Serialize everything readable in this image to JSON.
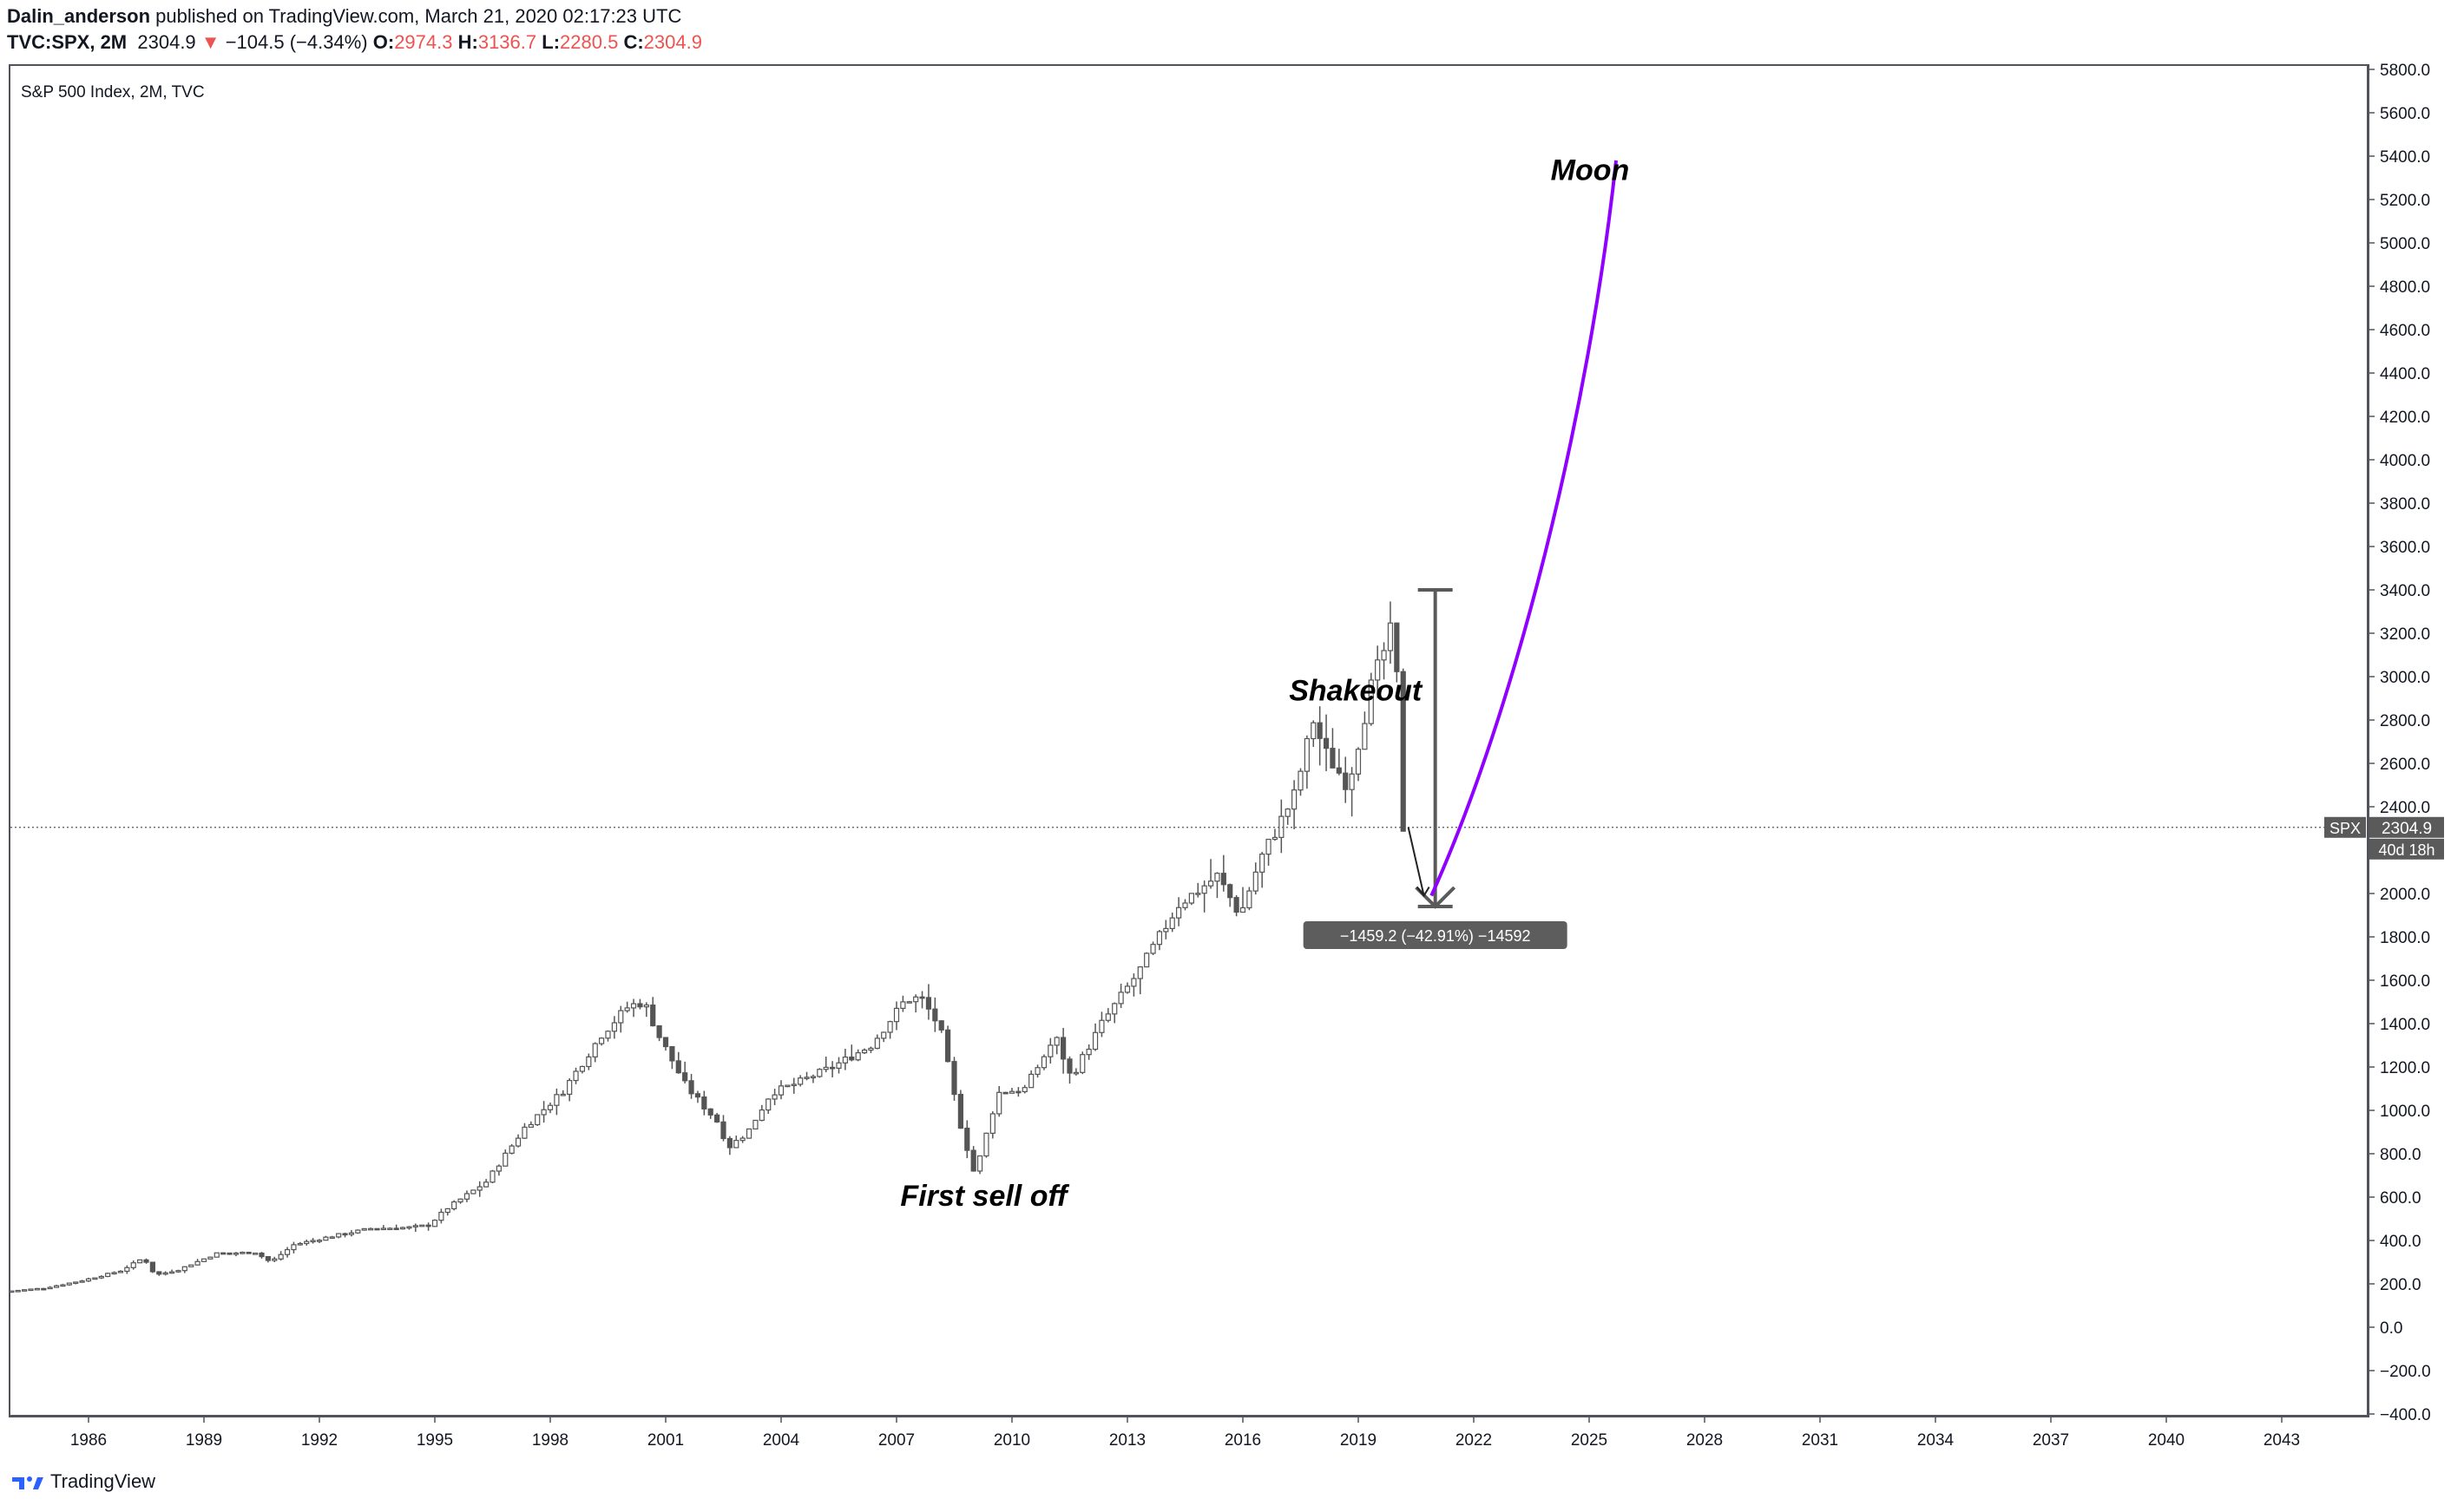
{
  "header": {
    "author": "Dalin_anderson",
    "published_text": "published on TradingView.com, March 21, 2020 02:17:23 UTC",
    "symbol": "TVC:SPX, 2M",
    "last": "2304.9",
    "change": "−104.5 (−4.34%)",
    "open_label": "O:",
    "open": "2974.3",
    "high_label": "H:",
    "high": "3136.7",
    "low_label": "L:",
    "low": "2280.5",
    "close_label": "C:",
    "close": "2304.9"
  },
  "footer": {
    "brand": "TradingView"
  },
  "colors": {
    "accent_purple": "#8f00ff",
    "measure": "#5a5a5a",
    "down": "#ef5350",
    "axis": "#50535e"
  },
  "chart_data": {
    "type": "candlestick",
    "title": "S&P 500 Index, 2M, TVC",
    "price_axis": {
      "ylim": [
        -400,
        5800
      ],
      "ticks": [
        5800,
        5600,
        5400,
        5200,
        5000,
        4800,
        4600,
        4400,
        4200,
        4000,
        3800,
        3600,
        3400,
        3200,
        3000,
        2800,
        2600,
        2400,
        2000,
        1800,
        1600,
        1400,
        1200,
        1000,
        800,
        600,
        400,
        200,
        0,
        -200,
        -400
      ],
      "tick_labels": [
        "5800.0",
        "5600.0",
        "5400.0",
        "5200.0",
        "5000.0",
        "4800.0",
        "4600.0",
        "4400.0",
        "4200.0",
        "4000.0",
        "3800.0",
        "3600.0",
        "3400.0",
        "3200.0",
        "3000.0",
        "2800.0",
        "2600.0",
        "2400.0",
        "2000.0",
        "1800.0",
        "1600.0",
        "1400.0",
        "1200.0",
        "1000.0",
        "800.0",
        "600.0",
        "400.0",
        "200.0",
        "0.0",
        "−200.0",
        "−400.0"
      ]
    },
    "time_axis": {
      "xlim": [
        1984,
        2045.2
      ],
      "ticks": [
        1986,
        1989,
        1992,
        1995,
        1998,
        2001,
        2004,
        2007,
        2010,
        2013,
        2016,
        2019,
        2022,
        2025,
        2028,
        2031,
        2034,
        2037,
        2040,
        2043
      ],
      "tick_labels": [
        "1986",
        "1989",
        "1992",
        "1995",
        "1998",
        "2001",
        "2004",
        "2007",
        "2010",
        "2013",
        "2016",
        "2019",
        "2022",
        "2025",
        "2028",
        "2031",
        "2034",
        "2037",
        "2040",
        "2043"
      ]
    },
    "price_path": [
      [
        1984.0,
        165
      ],
      [
        1985.0,
        180
      ],
      [
        1986.0,
        215
      ],
      [
        1987.0,
        260
      ],
      [
        1987.6,
        320
      ],
      [
        1987.9,
        240
      ],
      [
        1988.5,
        265
      ],
      [
        1989.5,
        340
      ],
      [
        1990.5,
        345
      ],
      [
        1990.9,
        300
      ],
      [
        1991.5,
        380
      ],
      [
        1992.5,
        420
      ],
      [
        1993.5,
        455
      ],
      [
        1994.5,
        460
      ],
      [
        1995.0,
        470
      ],
      [
        1995.5,
        550
      ],
      [
        1996.5,
        670
      ],
      [
        1997.5,
        920
      ],
      [
        1998.5,
        1090
      ],
      [
        1999.5,
        1350
      ],
      [
        2000.2,
        1480
      ],
      [
        2000.6,
        1500
      ],
      [
        2001.0,
        1340
      ],
      [
        2001.7,
        1110
      ],
      [
        2002.5,
        950
      ],
      [
        2002.8,
        830
      ],
      [
        2003.3,
        900
      ],
      [
        2003.9,
        1080
      ],
      [
        2004.5,
        1120
      ],
      [
        2005.5,
        1200
      ],
      [
        2006.5,
        1300
      ],
      [
        2007.4,
        1510
      ],
      [
        2007.8,
        1520
      ],
      [
        2008.3,
        1380
      ],
      [
        2008.8,
        950
      ],
      [
        2009.2,
        700
      ],
      [
        2009.8,
        1080
      ],
      [
        2010.5,
        1100
      ],
      [
        2011.3,
        1340
      ],
      [
        2011.7,
        1150
      ],
      [
        2012.5,
        1400
      ],
      [
        2013.5,
        1650
      ],
      [
        2014.5,
        1950
      ],
      [
        2015.5,
        2080
      ],
      [
        2016.1,
        1900
      ],
      [
        2016.6,
        2150
      ],
      [
        2017.5,
        2450
      ],
      [
        2018.0,
        2800
      ],
      [
        2018.3,
        2650
      ],
      [
        2018.9,
        2500
      ],
      [
        2019.5,
        2950
      ],
      [
        2020.0,
        3200
      ],
      [
        2020.2,
        2950
      ],
      [
        2020.3,
        2304.9
      ]
    ],
    "current_price": {
      "symbol": "SPX",
      "value": "2304.9",
      "countdown": "40d 18h",
      "price": 2304.9
    },
    "measure": {
      "label": "−1459.2 (−42.91%) −14592",
      "from_price": 3400,
      "to_price": 1940,
      "x": 2021.0
    },
    "projection": {
      "name": "Moon",
      "start": [
        2020.9,
        1990
      ],
      "end": [
        2025.7,
        5380
      ]
    },
    "annotations": [
      {
        "text": "Shakeout",
        "x": 2017.2,
        "price": 2890
      },
      {
        "text": "First sell off",
        "x": 2007.1,
        "price": 560
      },
      {
        "text": "Moon",
        "x": 2024.0,
        "price": 5290
      }
    ]
  }
}
